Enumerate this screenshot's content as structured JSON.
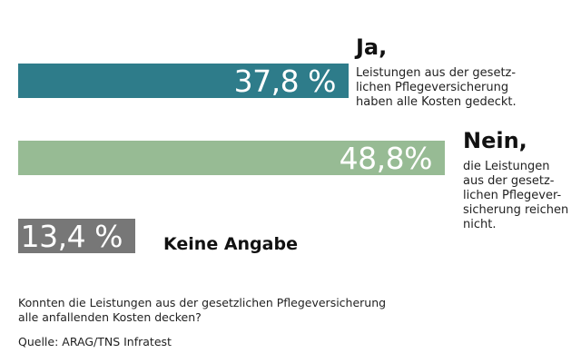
{
  "chart_data": {
    "type": "bar",
    "orientation": "horizontal",
    "xlim": [
      0,
      50
    ],
    "categories": [
      "Ja,",
      "Nein,",
      "Keine Angabe"
    ],
    "values": [
      37.8,
      48.8,
      13.4
    ],
    "value_labels": [
      "37,8 %",
      "48,8%",
      "13,4 %"
    ],
    "descriptions": [
      [
        "Leistungen aus der gesetz-",
        "lichen Pflegeversicherung",
        "haben alle Kosten gedeckt."
      ],
      [
        "die Leistungen",
        "aus der gesetz-",
        "lichen Pflegever-",
        "sicherung reichen",
        "nicht."
      ],
      []
    ],
    "colors": [
      "#2e7c8a",
      "#97bb94",
      "#777777"
    ],
    "question": [
      "Konnten die Leistungen aus der gesetzlichen Pflegeversicherung",
      "alle anfallenden Kosten decken?"
    ],
    "source": "Quelle: ARAG/TNS Infratest"
  }
}
